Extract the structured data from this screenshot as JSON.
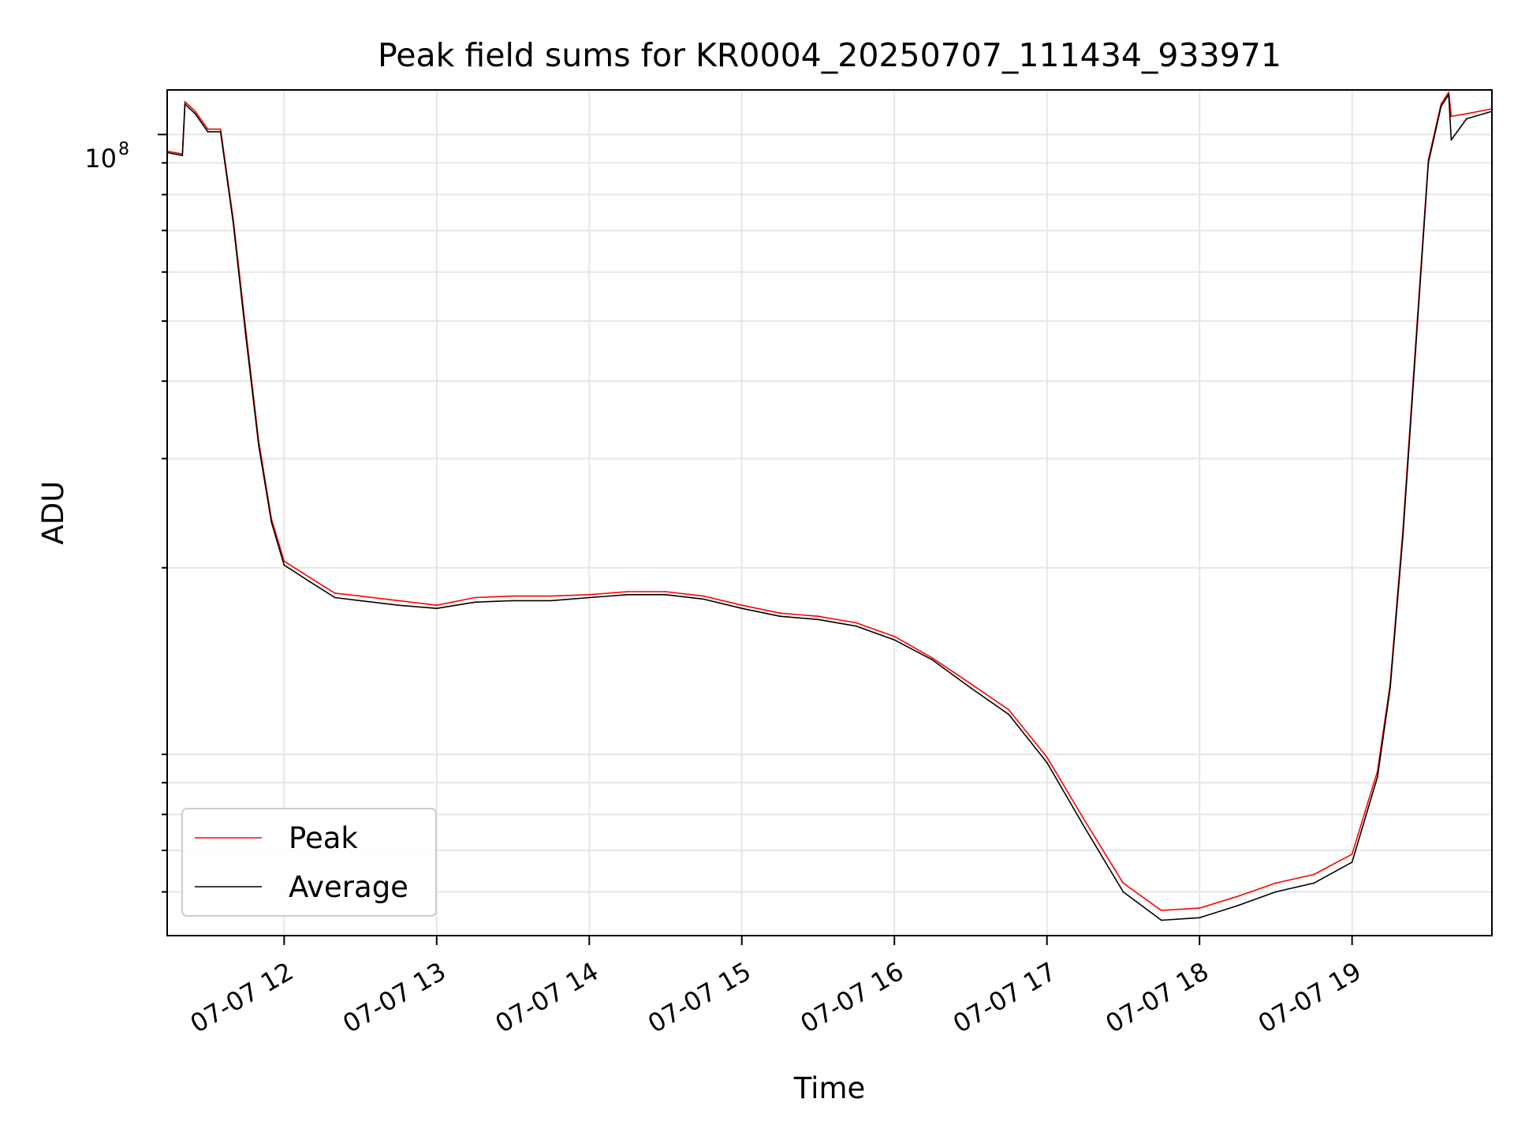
{
  "chart_data": {
    "type": "line",
    "title": "Peak field sums for KR0004_20250707_111434_933971",
    "xlabel": "Time",
    "ylabel": "ADU",
    "y_scale": "log",
    "y_tick_base": "10",
    "y_tick_exp": "8",
    "grid": true,
    "legend_loc": "lower-left",
    "x_ticks": [
      "07-07 12",
      "07-07 13",
      "07-07 14",
      "07-07 15",
      "07-07 16",
      "07-07 17",
      "07-07 18",
      "07-07 19"
    ],
    "x_tick_values": [
      12,
      13,
      14,
      15,
      16,
      17,
      18,
      19
    ],
    "xlim": [
      "2025-07-07 11:14",
      "2025-07-07 19:55"
    ],
    "ylim": [
      5100000.0,
      118000000.0
    ],
    "x": [
      "11:14",
      "11:20",
      "11:21",
      "11:25",
      "11:30",
      "11:35",
      "11:40",
      "11:45",
      "11:50",
      "11:55",
      "12:00",
      "12:10",
      "12:20",
      "12:30",
      "12:45",
      "13:00",
      "13:15",
      "13:30",
      "13:45",
      "14:00",
      "14:15",
      "14:30",
      "14:45",
      "15:00",
      "15:15",
      "15:30",
      "15:45",
      "16:00",
      "16:15",
      "16:30",
      "16:45",
      "17:00",
      "17:15",
      "17:30",
      "17:45",
      "18:00",
      "18:15",
      "18:30",
      "18:45",
      "19:00",
      "19:10",
      "19:15",
      "19:20",
      "19:25",
      "19:30",
      "19:35",
      "19:38",
      "19:39",
      "19:45",
      "19:55"
    ],
    "series": [
      {
        "name": "Peak",
        "color": "#ff0000",
        "values": [
          94000000.0,
          93000000.0,
          113000000.0,
          109000000.0,
          102000000.0,
          102000000.0,
          73000000.0,
          48000000.0,
          32000000.0,
          24000000.0,
          20500000.0,
          19300000.0,
          18200000.0,
          18000000.0,
          17700000.0,
          17400000.0,
          17900000.0,
          18000000.0,
          18000000.0,
          18100000.0,
          18300000.0,
          18300000.0,
          18000000.0,
          17400000.0,
          16900000.0,
          16700000.0,
          16300000.0,
          15500000.0,
          14300000.0,
          13000000.0,
          11800000.0,
          9900000.0,
          7800000.0,
          6200000.0,
          5600000.0,
          5650000.0,
          5900000.0,
          6200000.0,
          6400000.0,
          6900000.0,
          9400000.0,
          13000000.0,
          23000000.0,
          46000000.0,
          91000000.0,
          112000000.0,
          117000000.0,
          107000000.0,
          108000000.0,
          110000000.0
        ]
      },
      {
        "name": "Average",
        "color": "#000000",
        "values": [
          93500000.0,
          92500000.0,
          112000000.0,
          108000000.0,
          101000000.0,
          101000000.0,
          72000000.0,
          47000000.0,
          31500000.0,
          23700000.0,
          20200000.0,
          19000000.0,
          17900000.0,
          17700000.0,
          17400000.0,
          17200000.0,
          17600000.0,
          17700000.0,
          17700000.0,
          17900000.0,
          18100000.0,
          18100000.0,
          17800000.0,
          17200000.0,
          16700000.0,
          16500000.0,
          16100000.0,
          15300000.0,
          14200000.0,
          12800000.0,
          11600000.0,
          9700000.0,
          7600000.0,
          6000000.0,
          5400000.0,
          5450000.0,
          5700000.0,
          6000000.0,
          6200000.0,
          6700000.0,
          9200000.0,
          12800000.0,
          22500000.0,
          45000000.0,
          90000000.0,
          111000000.0,
          116000000.0,
          98000000.0,
          106000000.0,
          109000000.0
        ]
      }
    ]
  }
}
